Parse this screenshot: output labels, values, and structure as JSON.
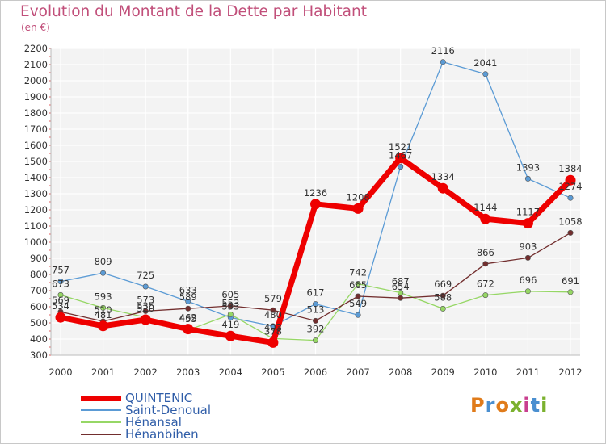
{
  "header": {
    "title": "Evolution du Montant de la Dette par Habitant",
    "subtitle": "(en €)"
  },
  "logo": {
    "text": "Proxiti",
    "colors": [
      "#e07b1a",
      "#4a8fd0",
      "#e07b1a",
      "#7bb12e",
      "#c93f8f",
      "#4a8fd0",
      "#7bb12e"
    ]
  },
  "chart_data": {
    "type": "line",
    "title": "Evolution du Montant de la Dette par Habitant",
    "subtitle": "(en €)",
    "xlabel": "",
    "ylabel": "",
    "categories": [
      "2000",
      "2001",
      "2002",
      "2003",
      "2004",
      "2005",
      "2006",
      "2007",
      "2008",
      "2009",
      "2010",
      "2011",
      "2012"
    ],
    "ylim": [
      300,
      2200
    ],
    "yticks": [
      300,
      400,
      500,
      600,
      700,
      800,
      900,
      1000,
      1100,
      1200,
      1300,
      1400,
      1500,
      1600,
      1700,
      1800,
      1900,
      2000,
      2100,
      2200
    ],
    "grid": true,
    "legend_position": "bottom-left",
    "series": [
      {
        "name": "Saint-Denoual",
        "color": "#5b9bd5",
        "width": 1.3,
        "values": [
          757,
          809,
          725,
          633,
          533,
          480,
          617,
          549,
          1467,
          2116,
          2041,
          1393,
          1274
        ],
        "labels": [
          "757",
          "809",
          "725",
          "633",
          "533",
          "480",
          "617",
          "549",
          "1467",
          "2116",
          "2041",
          "1393",
          "1274"
        ]
      },
      {
        "name": "Hénansal",
        "color": "#96d765",
        "width": 1.3,
        "values": [
          673,
          593,
          535,
          455,
          553,
          403,
          392,
          742,
          687,
          588,
          672,
          696,
          691
        ],
        "labels": [
          "673",
          "593",
          "535",
          "455",
          "553",
          "403",
          "392",
          "742",
          "687",
          "588",
          "672",
          "696",
          "691"
        ]
      },
      {
        "name": "Hénanbihen",
        "color": "#722e2e",
        "width": 1.3,
        "values": [
          569,
          510,
          573,
          589,
          605,
          579,
          513,
          665,
          654,
          669,
          866,
          903,
          1058
        ],
        "labels": [
          "569",
          "510",
          "573",
          "589",
          "605",
          "579",
          "513",
          "665",
          "654",
          "669",
          "866",
          "903",
          "1058"
        ]
      },
      {
        "name": "QUINTENIC",
        "color": "#ee0000",
        "width": 7,
        "values": [
          534,
          481,
          520,
          462,
          419,
          378,
          1236,
          1208,
          1521,
          1334,
          1144,
          1117,
          1384
        ],
        "labels": [
          "534",
          "481",
          "520",
          "462",
          "419",
          "378",
          "1236",
          "1208",
          "1521",
          "1334",
          "1144",
          "1117",
          "1384"
        ]
      }
    ]
  },
  "legend": {
    "items": [
      {
        "label": "QUINTENIC",
        "color": "#ee0000",
        "thickness": 7
      },
      {
        "label": "Saint-Denoual",
        "color": "#5b9bd5",
        "thickness": 2
      },
      {
        "label": "Hénansal",
        "color": "#96d765",
        "thickness": 2
      },
      {
        "label": "Hénanbihen",
        "color": "#722e2e",
        "thickness": 2
      }
    ]
  }
}
